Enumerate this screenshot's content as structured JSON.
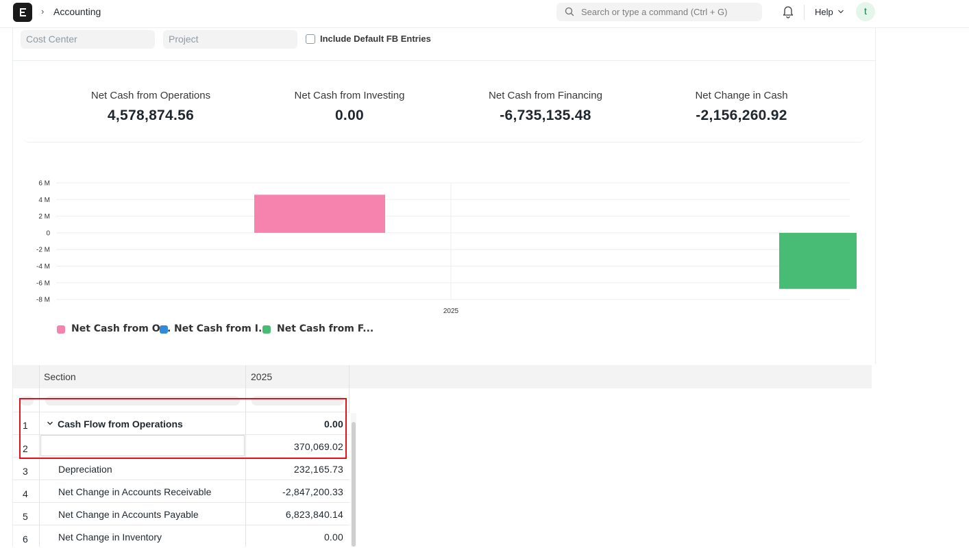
{
  "navbar": {
    "breadcrumb_separator": "›",
    "breadcrumb": "Accounting",
    "search_placeholder": "Search or type a command (Ctrl + G)",
    "help_label": "Help",
    "avatar_initial": "t"
  },
  "filters": {
    "cost_center_placeholder": "Cost Center",
    "project_placeholder": "Project",
    "include_default_fb_label": "Include Default FB Entries",
    "include_default_fb_checked": false
  },
  "summary": [
    {
      "label": "Net Cash from Operations",
      "value": "4,578,874.56"
    },
    {
      "label": "Net Cash from Investing",
      "value": "0.00"
    },
    {
      "label": "Net Cash from Financing",
      "value": "-6,735,135.48"
    },
    {
      "label": "Net Change in Cash",
      "value": "-2,156,260.92"
    }
  ],
  "chart_data": {
    "type": "bar",
    "categories": [
      "2025"
    ],
    "series": [
      {
        "name": "Net Cash from Operations",
        "values": [
          4578874.56
        ],
        "color": "#f683ae"
      },
      {
        "name": "Net Cash from Investing",
        "values": [
          0
        ],
        "color": "#318ad8"
      },
      {
        "name": "Net Cash from Financing",
        "values": [
          -6735135.48
        ],
        "color": "#48bb74"
      }
    ],
    "legend_labels": [
      "Net Cash from O...",
      "Net Cash from I...",
      "Net Cash from F..."
    ],
    "y_ticks": [
      "6 M",
      "4 M",
      "2 M",
      "0",
      "-2 M",
      "-4 M",
      "-6 M",
      "-8 M"
    ],
    "ylim": [
      -8000000,
      6000000
    ],
    "grid": true,
    "legend_position": "bottom-left"
  },
  "table": {
    "columns": [
      "Section",
      "2025"
    ],
    "rows": [
      {
        "num": "1",
        "label": "Cash Flow from Operations",
        "value": "0.00",
        "bold": true,
        "group": true
      },
      {
        "num": "2",
        "label": "",
        "value": "370,069.02",
        "editing": true
      },
      {
        "num": "3",
        "label": "Depreciation",
        "value": "232,165.73"
      },
      {
        "num": "4",
        "label": "Net Change in Accounts Receivable",
        "value": "-2,847,200.33"
      },
      {
        "num": "5",
        "label": "Net Change in Accounts Payable",
        "value": "6,823,840.14"
      },
      {
        "num": "6",
        "label": "Net Change in Inventory",
        "value": "0.00"
      }
    ]
  }
}
